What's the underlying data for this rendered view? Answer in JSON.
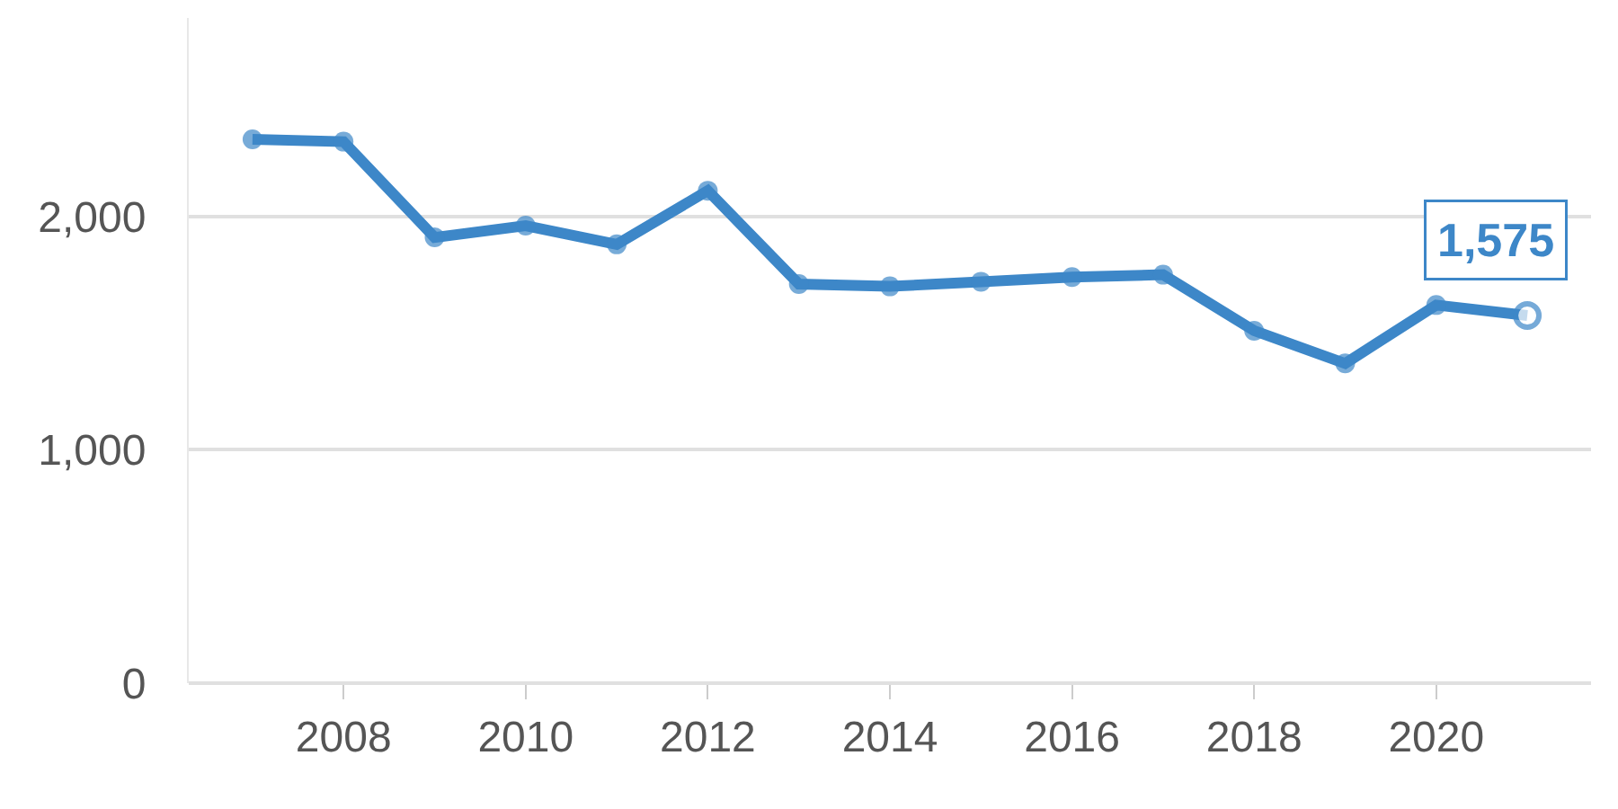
{
  "chart_data": {
    "type": "line",
    "x": [
      2007,
      2008,
      2009,
      2010,
      2011,
      2012,
      2013,
      2014,
      2015,
      2016,
      2017,
      2018,
      2019,
      2020,
      2021
    ],
    "series": [
      {
        "color": "#3d87c8",
        "values": [
          2330,
          2320,
          1910,
          1960,
          1880,
          2110,
          1710,
          1700,
          1720,
          1740,
          1750,
          1510,
          1370,
          1620,
          1575
        ],
        "value_labels": [
          null,
          null,
          null,
          null,
          null,
          null,
          null,
          null,
          null,
          null,
          null,
          null,
          null,
          null,
          "1,575"
        ]
      }
    ],
    "xlim": [
      2006.3,
      2021.7
    ],
    "xticks": [
      2008,
      2010,
      2012,
      2014,
      2016,
      2018,
      2020
    ],
    "ylim": [
      0,
      2850
    ],
    "yticks": [
      {
        "value": 0,
        "label": "0"
      },
      {
        "value": 1000,
        "label": "1,000"
      },
      {
        "value": 2000,
        "label": "2,000"
      }
    ],
    "grid": "y",
    "marker": "circle",
    "line_style": "solid",
    "legend": false
  }
}
